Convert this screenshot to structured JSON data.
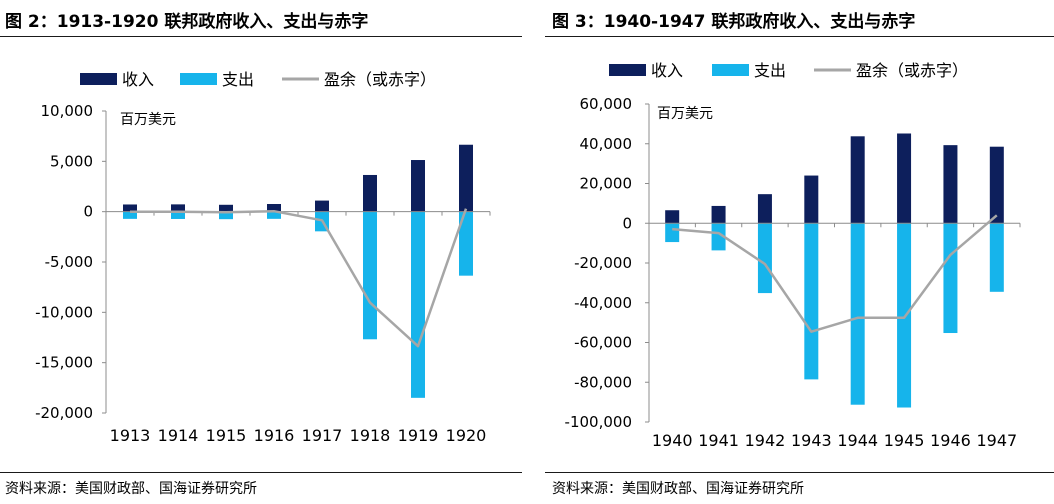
{
  "panels": [
    {
      "title": "图 2：1913-1920 联邦政府收入、支出与赤字",
      "source": "资料来源：美国财政部、国海证券研究所"
    },
    {
      "title": "图 3：1940-1947 联邦政府收入、支出与赤字",
      "source": "资料来源：美国财政部、国海证券研究所"
    }
  ],
  "colors": {
    "revenue": "#0d1f5c",
    "expenditure": "#16b4eb",
    "balance": "#a6a6a6"
  },
  "chart_data": [
    {
      "type": "bar",
      "title": "1913-1920 联邦政府收入、支出与赤字",
      "unit_label": "百万美元",
      "categories": [
        "1913",
        "1914",
        "1915",
        "1916",
        "1917",
        "1918",
        "1919",
        "1920"
      ],
      "yticks": [
        "10,000",
        "5,000",
        "0",
        "-5,000",
        "-10,000",
        "-15,000",
        "-20,000"
      ],
      "ylim": [
        -20000,
        10000
      ],
      "legend_position": "top",
      "grid": false,
      "series": [
        {
          "name": "收入",
          "kind": "bar",
          "values": [
            714,
            725,
            683,
            761,
            1101,
            3645,
            5130,
            6649
          ]
        },
        {
          "name": "支出",
          "kind": "bar",
          "values": [
            -715,
            -726,
            -746,
            -713,
            -1954,
            -12677,
            -18493,
            -6358
          ]
        },
        {
          "name": "盈余（或赤字）",
          "kind": "line",
          "values": [
            -1,
            -1,
            -63,
            48,
            -853,
            -9032,
            -13363,
            291
          ]
        }
      ]
    },
    {
      "type": "bar",
      "title": "1940-1947 联邦政府收入、支出与赤字",
      "unit_label": "百万美元",
      "categories": [
        "1940",
        "1941",
        "1942",
        "1943",
        "1944",
        "1945",
        "1946",
        "1947"
      ],
      "yticks": [
        "60,000",
        "40,000",
        "20,000",
        "0",
        "-20,000",
        "-40,000",
        "-60,000",
        "-80,000",
        "-100,000"
      ],
      "ylim": [
        -100000,
        60000
      ],
      "legend_position": "top",
      "grid": false,
      "series": [
        {
          "name": "收入",
          "kind": "bar",
          "values": [
            6548,
            8712,
            14634,
            24001,
            43747,
            45159,
            39296,
            38514
          ]
        },
        {
          "name": "支出",
          "kind": "bar",
          "values": [
            -9468,
            -13653,
            -35137,
            -78555,
            -91304,
            -92712,
            -55232,
            -34496
          ]
        },
        {
          "name": "盈余（或赤字）",
          "kind": "line",
          "values": [
            -2920,
            -4941,
            -20503,
            -54554,
            -47557,
            -47553,
            -15936,
            4018
          ]
        }
      ]
    }
  ]
}
